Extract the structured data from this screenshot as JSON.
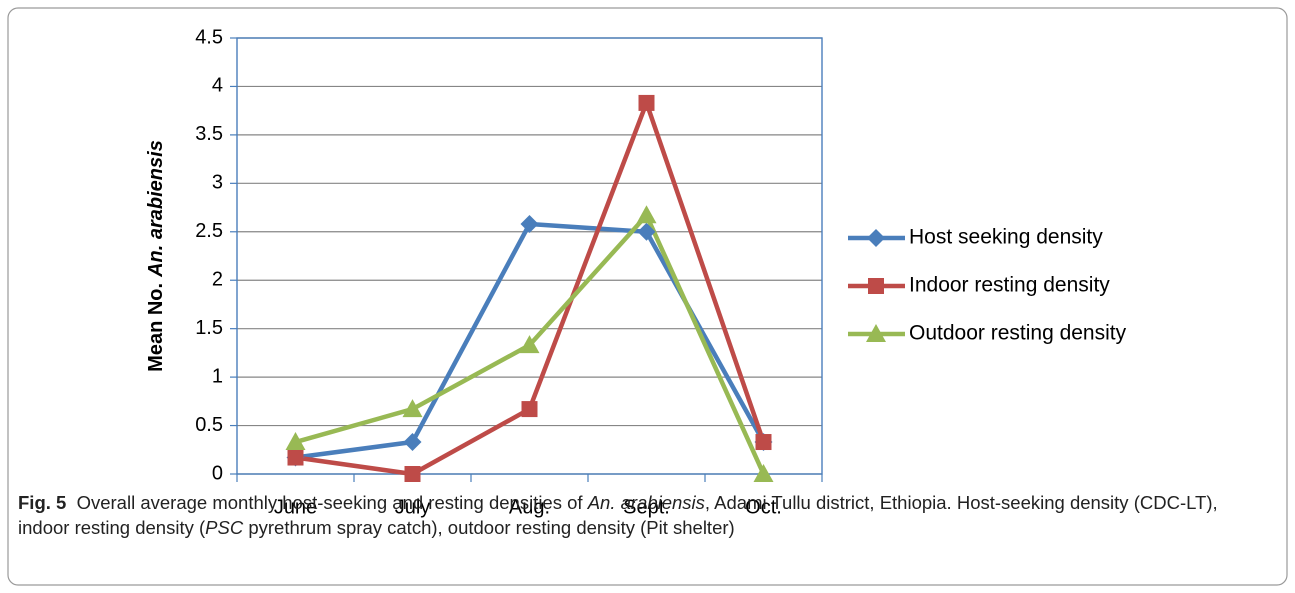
{
  "chart_data": {
    "type": "line",
    "y_label": [
      "Mean No.",
      "An. arabiensis"
    ],
    "categories": [
      "June",
      "July",
      "Aug.",
      "Sept.",
      "Oct."
    ],
    "series": [
      {
        "name": "Host seeking density",
        "color": "#4a7ebb",
        "marker": "diamond",
        "values": [
          0.17,
          0.33,
          2.58,
          2.5,
          0.33
        ]
      },
      {
        "name": "Indoor resting density",
        "color": "#be4b48",
        "marker": "square",
        "values": [
          0.17,
          0,
          0.67,
          3.83,
          0.33
        ]
      },
      {
        "name": "Outdoor resting density",
        "color": "#98b954",
        "marker": "triangle",
        "values": [
          0.33,
          0.67,
          1.33,
          2.67,
          0
        ]
      }
    ],
    "ylim": [
      0,
      4.5
    ],
    "yticks": [
      0,
      0.5,
      1,
      1.5,
      2,
      2.5,
      3,
      3.5,
      4,
      4.5
    ],
    "grid": true,
    "legend": "right",
    "caption": [
      {
        "text": "Fig. 5",
        "style": "bold"
      },
      {
        "text": "  Overall average monthly host-seeking and resting densities of "
      },
      {
        "text": "An. arabiensis",
        "style": "italic"
      },
      {
        "text": ", Adami Tullu district, Ethiopia. Host-seeking density (CDC-LT), indoor resting density ("
      },
      {
        "text": "PSC",
        "style": "italic"
      },
      {
        "text": " pyrethrum spray catch), outdoor resting density (Pit shelter)"
      }
    ]
  }
}
